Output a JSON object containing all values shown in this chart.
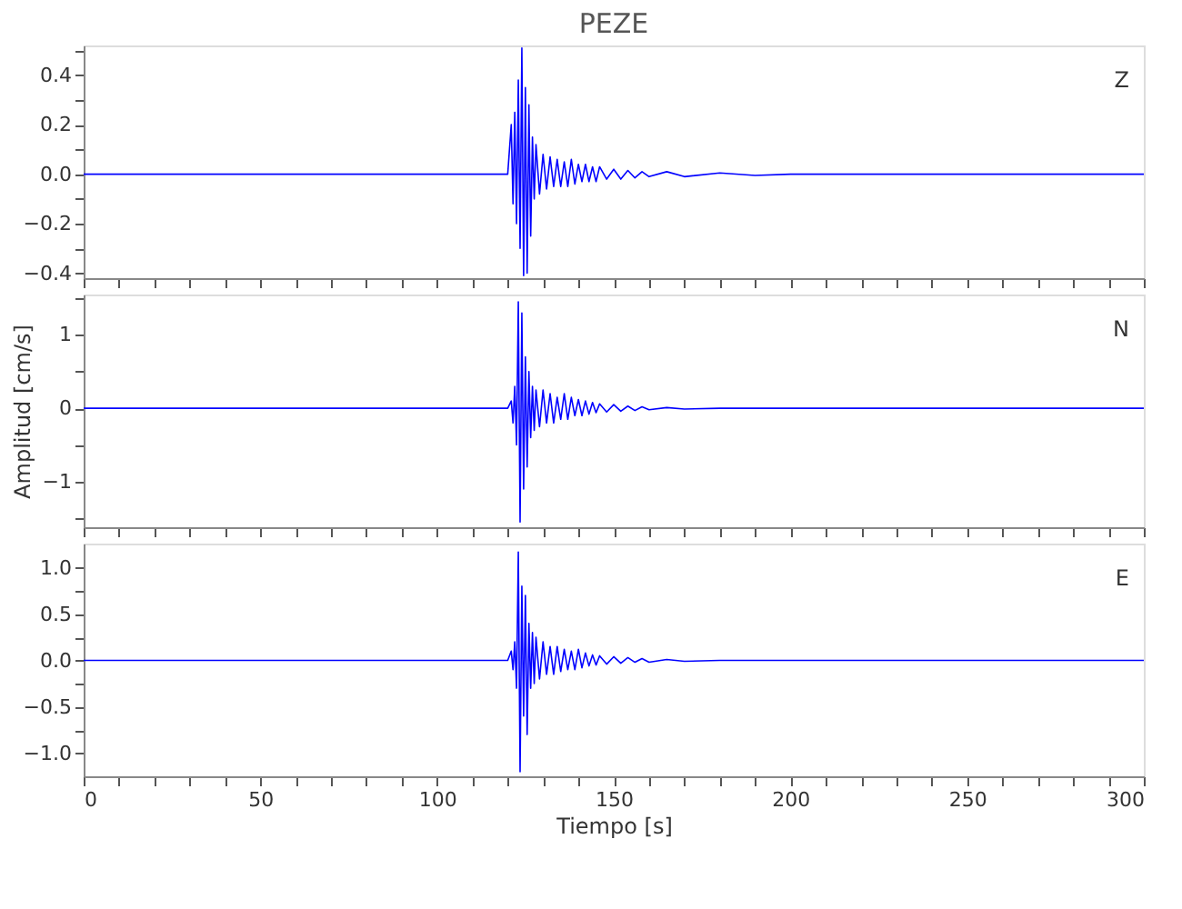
{
  "chart_data": [
    {
      "type": "line",
      "title": "PEZE",
      "annotations": [
        "Z"
      ],
      "tick_labels": "y",
      "xlim": [
        0,
        300
      ],
      "xticks": [
        {
          "value": 0,
          "label": null
        },
        {
          "value": 10,
          "label": null
        },
        {
          "value": 20,
          "label": null
        },
        {
          "value": 30,
          "label": null
        },
        {
          "value": 40,
          "label": null
        },
        {
          "value": 50,
          "label": null
        },
        {
          "value": 60,
          "label": null
        },
        {
          "value": 70,
          "label": null
        },
        {
          "value": 80,
          "label": null
        },
        {
          "value": 90,
          "label": null
        },
        {
          "value": 100,
          "label": null
        },
        {
          "value": 110,
          "label": null
        },
        {
          "value": 120,
          "label": null
        },
        {
          "value": 130,
          "label": null
        },
        {
          "value": 140,
          "label": null
        },
        {
          "value": 150,
          "label": null
        },
        {
          "value": 160,
          "label": null
        },
        {
          "value": 170,
          "label": null
        },
        {
          "value": 180,
          "label": null
        },
        {
          "value": 190,
          "label": null
        },
        {
          "value": 200,
          "label": null
        },
        {
          "value": 210,
          "label": null
        },
        {
          "value": 220,
          "label": null
        },
        {
          "value": 230,
          "label": null
        },
        {
          "value": 240,
          "label": null
        },
        {
          "value": 250,
          "label": null
        },
        {
          "value": 260,
          "label": null
        },
        {
          "value": 270,
          "label": null
        },
        {
          "value": 280,
          "label": null
        },
        {
          "value": 290,
          "label": null
        },
        {
          "value": 300,
          "label": null
        }
      ],
      "ylim": [
        -0.42,
        0.52
      ],
      "yticks": [
        {
          "value": -0.4,
          "label": "−0.4"
        },
        {
          "value": -0.3,
          "label": null
        },
        {
          "value": -0.2,
          "label": "−0.2"
        },
        {
          "value": -0.1,
          "label": null
        },
        {
          "value": 0,
          "label": "0.0"
        },
        {
          "value": 0.1,
          "label": null
        },
        0.2,
        {
          "value": 0.3,
          "label": null
        },
        0.4,
        {
          "value": 0.5,
          "label": null
        }
      ],
      "x": [
        0,
        20,
        40,
        60,
        80,
        100,
        115,
        120,
        121,
        121.5,
        122,
        122.5,
        123,
        123.5,
        124,
        124.5,
        125,
        125.5,
        126,
        126.5,
        127,
        127.5,
        128,
        129,
        130,
        131,
        132,
        133,
        134,
        135,
        136,
        137,
        138,
        139,
        140,
        141,
        142,
        143,
        144,
        145,
        146,
        148,
        150,
        152,
        154,
        156,
        158,
        160,
        165,
        170,
        180,
        190,
        200,
        220,
        240,
        260,
        280,
        300
      ],
      "series": [
        {
          "color": "#0000ff",
          "values": [
            0,
            0,
            0,
            0,
            0,
            0,
            0,
            0,
            0.2,
            -0.12,
            0.25,
            -0.2,
            0.38,
            -0.3,
            0.51,
            -0.41,
            0.35,
            -0.4,
            0.28,
            -0.25,
            0.15,
            -0.1,
            0.12,
            -0.08,
            0.08,
            -0.06,
            0.07,
            -0.05,
            0.06,
            -0.05,
            0.05,
            -0.05,
            0.06,
            -0.04,
            0.04,
            -0.03,
            0.04,
            -0.03,
            0.03,
            -0.03,
            0.03,
            -0.02,
            0.02,
            -0.02,
            0.015,
            -0.015,
            0.01,
            -0.01,
            0.01,
            -0.01,
            0.005,
            -0.005,
            0,
            0,
            0,
            0,
            0,
            0
          ]
        }
      ]
    },
    {
      "type": "line",
      "ylabel": "Amplitud [cm/s]",
      "annotations": [
        "N"
      ],
      "tick_labels": "y",
      "xlim": [
        0,
        300
      ],
      "xticks": [
        {
          "value": 0,
          "label": null
        },
        {
          "value": 10,
          "label": null
        },
        {
          "value": 20,
          "label": null
        },
        {
          "value": 30,
          "label": null
        },
        {
          "value": 40,
          "label": null
        },
        {
          "value": 50,
          "label": null
        },
        {
          "value": 60,
          "label": null
        },
        {
          "value": 70,
          "label": null
        },
        {
          "value": 80,
          "label": null
        },
        {
          "value": 90,
          "label": null
        },
        {
          "value": 100,
          "label": null
        },
        {
          "value": 110,
          "label": null
        },
        {
          "value": 120,
          "label": null
        },
        {
          "value": 130,
          "label": null
        },
        {
          "value": 140,
          "label": null
        },
        {
          "value": 150,
          "label": null
        },
        {
          "value": 160,
          "label": null
        },
        {
          "value": 170,
          "label": null
        },
        {
          "value": 180,
          "label": null
        },
        {
          "value": 190,
          "label": null
        },
        {
          "value": 200,
          "label": null
        },
        {
          "value": 210,
          "label": null
        },
        {
          "value": 220,
          "label": null
        },
        {
          "value": 230,
          "label": null
        },
        {
          "value": 240,
          "label": null
        },
        {
          "value": 250,
          "label": null
        },
        {
          "value": 260,
          "label": null
        },
        {
          "value": 270,
          "label": null
        },
        {
          "value": 280,
          "label": null
        },
        {
          "value": 290,
          "label": null
        },
        {
          "value": 300,
          "label": null
        }
      ],
      "ylim": [
        -1.62,
        1.55
      ],
      "yticks": [
        {
          "value": -1.5,
          "label": null
        },
        {
          "value": -1,
          "label": "−1"
        },
        {
          "value": -0.5,
          "label": null
        },
        0,
        {
          "value": 0.5,
          "label": null
        },
        1,
        {
          "value": 1.5,
          "label": null
        }
      ],
      "x": [
        0,
        20,
        40,
        60,
        80,
        100,
        115,
        120,
        121,
        121.5,
        122,
        122.5,
        123,
        123.5,
        124,
        124.5,
        125,
        125.5,
        126,
        126.5,
        127,
        127.5,
        128,
        129,
        130,
        131,
        132,
        133,
        134,
        135,
        136,
        137,
        138,
        139,
        140,
        141,
        142,
        143,
        144,
        145,
        146,
        148,
        150,
        152,
        154,
        156,
        158,
        160,
        165,
        170,
        180,
        190,
        200,
        220,
        240,
        260,
        280,
        300
      ],
      "series": [
        {
          "color": "#0000ff",
          "values": [
            0,
            0,
            0,
            0,
            0,
            0,
            0,
            0,
            0.1,
            -0.2,
            0.3,
            -0.5,
            1.45,
            -1.55,
            1.3,
            -1.1,
            0.7,
            -0.8,
            0.5,
            -0.4,
            0.3,
            -0.3,
            0.25,
            -0.25,
            0.25,
            -0.2,
            0.2,
            -0.2,
            0.15,
            -0.15,
            0.2,
            -0.15,
            0.15,
            -0.1,
            0.12,
            -0.1,
            0.1,
            -0.08,
            0.08,
            -0.06,
            0.06,
            -0.05,
            0.05,
            -0.04,
            0.03,
            -0.03,
            0.02,
            -0.02,
            0.01,
            -0.01,
            0,
            0,
            0,
            0,
            0,
            0,
            0,
            0
          ]
        }
      ]
    },
    {
      "type": "line",
      "xlabel": "Tiempo [s]",
      "annotations": [
        "E"
      ],
      "xlim": [
        0,
        300
      ],
      "xticks": [
        0,
        {
          "value": 10,
          "label": null
        },
        {
          "value": 20,
          "label": null
        },
        {
          "value": 30,
          "label": null
        },
        {
          "value": 40,
          "label": null
        },
        50,
        {
          "value": 60,
          "label": null
        },
        {
          "value": 70,
          "label": null
        },
        {
          "value": 80,
          "label": null
        },
        {
          "value": 90,
          "label": null
        },
        100,
        {
          "value": 110,
          "label": null
        },
        {
          "value": 120,
          "label": null
        },
        {
          "value": 130,
          "label": null
        },
        {
          "value": 140,
          "label": null
        },
        150,
        {
          "value": 160,
          "label": null
        },
        {
          "value": 170,
          "label": null
        },
        {
          "value": 180,
          "label": null
        },
        {
          "value": 190,
          "label": null
        },
        200,
        {
          "value": 210,
          "label": null
        },
        {
          "value": 220,
          "label": null
        },
        {
          "value": 230,
          "label": null
        },
        {
          "value": 240,
          "label": null
        },
        250,
        {
          "value": 260,
          "label": null
        },
        {
          "value": 270,
          "label": null
        },
        {
          "value": 280,
          "label": null
        },
        {
          "value": 290,
          "label": null
        },
        300
      ],
      "ylim": [
        -1.25,
        1.26
      ],
      "yticks": [
        {
          "value": -1,
          "label": "−1.0"
        },
        {
          "value": -0.75,
          "label": null
        },
        {
          "value": -0.5,
          "label": "−0.5"
        },
        {
          "value": -0.25,
          "label": null
        },
        {
          "value": 0,
          "label": "0.0"
        },
        {
          "value": 0.25,
          "label": null
        },
        0.5,
        {
          "value": 0.75,
          "label": null
        },
        {
          "value": 1,
          "label": "1.0"
        }
      ],
      "x": [
        0,
        20,
        40,
        60,
        80,
        100,
        115,
        120,
        121,
        121.5,
        122,
        122.5,
        123,
        123.5,
        124,
        124.5,
        125,
        125.5,
        126,
        126.5,
        127,
        127.5,
        128,
        129,
        130,
        131,
        132,
        133,
        134,
        135,
        136,
        137,
        138,
        139,
        140,
        141,
        142,
        143,
        144,
        145,
        146,
        148,
        150,
        152,
        154,
        156,
        158,
        160,
        165,
        170,
        180,
        190,
        200,
        220,
        240,
        260,
        280,
        300
      ],
      "series": [
        {
          "color": "#0000ff",
          "values": [
            0,
            0,
            0,
            0,
            0,
            0,
            0,
            0,
            0.1,
            -0.1,
            0.2,
            -0.3,
            1.17,
            -1.2,
            0.8,
            -0.6,
            0.7,
            -0.8,
            0.4,
            -0.3,
            0.3,
            -0.25,
            0.25,
            -0.2,
            0.2,
            -0.15,
            0.15,
            -0.15,
            0.15,
            -0.12,
            0.12,
            -0.1,
            0.1,
            -0.1,
            0.12,
            -0.08,
            0.08,
            -0.06,
            0.06,
            -0.05,
            0.05,
            -0.04,
            0.04,
            -0.03,
            0.03,
            -0.02,
            0.02,
            -0.02,
            0.01,
            -0.01,
            0,
            0,
            0,
            0,
            0,
            0,
            0,
            0
          ]
        }
      ]
    }
  ]
}
